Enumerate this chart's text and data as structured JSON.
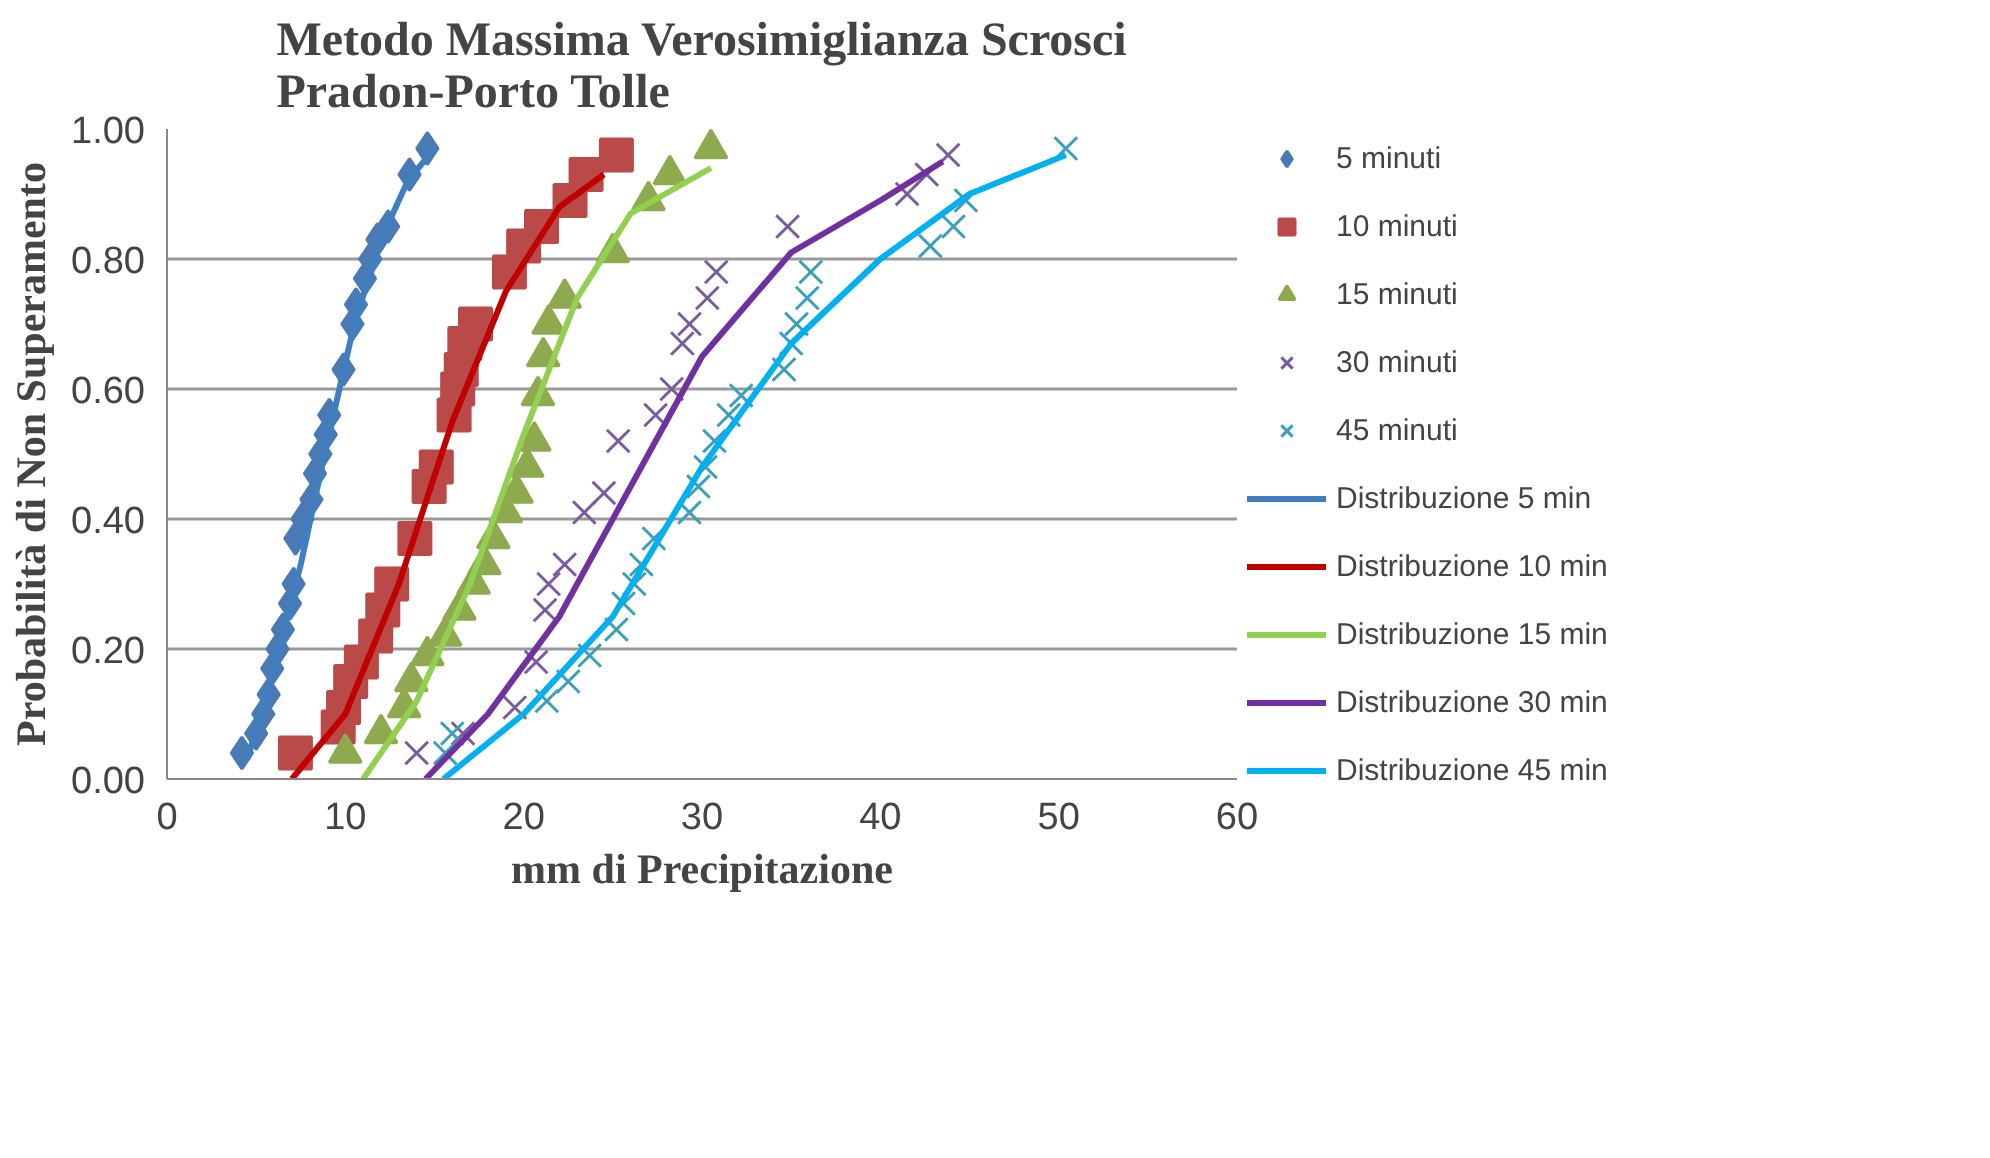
{
  "chart_data": {
    "type": "scatter",
    "title": "Metodo Massima Verosimiglianza Scrosci\nPradon-Porto Tolle",
    "xlabel": "mm di Precipitazione",
    "ylabel": "Probabilità di Non Superamento",
    "xlim": [
      0,
      60
    ],
    "xticks": [
      0,
      10,
      20,
      30,
      40,
      50,
      60
    ],
    "ylim": [
      0,
      1
    ],
    "yticks": [
      {
        "value": 0,
        "label": "0.00"
      },
      {
        "value": 0.2,
        "label": "0.20"
      },
      {
        "value": 0.4,
        "label": "0.40"
      },
      {
        "value": 0.6,
        "label": "0.60"
      },
      {
        "value": 0.8,
        "label": "0.80"
      },
      {
        "value": 1,
        "label": "1.00"
      }
    ],
    "grid": "y",
    "legend": "right",
    "series": [
      {
        "name": "5 minuti",
        "marker": "diamond",
        "color": "#4a7ab5",
        "x": [
          4.2,
          5.0,
          5.4,
          5.7,
          5.9,
          6.2,
          6.5,
          6.9,
          7.1,
          7.2,
          7.6,
          8.1,
          8.3,
          8.6,
          8.9,
          9.1,
          9.9,
          10.4,
          10.6,
          11.1,
          11.4,
          11.8,
          12.4,
          13.6,
          14.6
        ],
        "values": [
          0.04,
          0.07,
          0.1,
          0.13,
          0.17,
          0.2,
          0.23,
          0.27,
          0.3,
          0.37,
          0.4,
          0.43,
          0.47,
          0.5,
          0.53,
          0.56,
          0.63,
          0.7,
          0.73,
          0.77,
          0.8,
          0.83,
          0.85,
          0.93,
          0.97
        ]
      },
      {
        "name": "10 minuti",
        "marker": "square",
        "color": "#b94a47",
        "x": [
          7.2,
          9.6,
          9.9,
          10.3,
          10.9,
          11.7,
          12.1,
          12.6,
          13.9,
          14.7,
          15.1,
          16.1,
          16.3,
          16.5,
          16.7,
          17.3,
          19.2,
          20.0,
          21.0,
          22.6,
          23.5,
          25.2
        ],
        "values": [
          0.04,
          0.08,
          0.11,
          0.15,
          0.18,
          0.22,
          0.26,
          0.3,
          0.37,
          0.45,
          0.48,
          0.56,
          0.6,
          0.63,
          0.67,
          0.7,
          0.78,
          0.82,
          0.85,
          0.89,
          0.93,
          0.96
        ]
      },
      {
        "name": "15 minuti",
        "marker": "triangle",
        "color": "#8fa94f",
        "x": [
          10.0,
          12.0,
          13.3,
          13.7,
          14.6,
          15.6,
          16.4,
          17.2,
          17.8,
          18.3,
          19.0,
          19.6,
          20.2,
          20.6,
          20.8,
          21.1,
          21.4,
          22.3,
          25.0,
          27.0,
          28.2,
          30.5
        ],
        "values": [
          0.04,
          0.07,
          0.11,
          0.15,
          0.19,
          0.22,
          0.26,
          0.3,
          0.33,
          0.37,
          0.41,
          0.44,
          0.48,
          0.52,
          0.59,
          0.65,
          0.7,
          0.74,
          0.81,
          0.89,
          0.93,
          0.97
        ]
      },
      {
        "name": "30 minuti",
        "marker": "cross",
        "color": "#7a5c9e",
        "x": [
          14.0,
          16.6,
          19.5,
          20.7,
          21.2,
          21.4,
          22.3,
          23.4,
          24.5,
          25.3,
          27.4,
          28.3,
          28.9,
          29.3,
          30.3,
          30.8,
          34.8,
          41.5,
          42.6,
          43.8
        ],
        "values": [
          0.04,
          0.07,
          0.11,
          0.18,
          0.26,
          0.3,
          0.33,
          0.41,
          0.44,
          0.52,
          0.56,
          0.6,
          0.67,
          0.7,
          0.74,
          0.78,
          0.85,
          0.9,
          0.93,
          0.96
        ]
      },
      {
        "name": "45 minuti",
        "marker": "cross",
        "color": "#3a9fbb",
        "x": [
          15.6,
          16.0,
          21.3,
          22.5,
          23.7,
          25.2,
          25.6,
          26.2,
          26.6,
          27.3,
          29.3,
          29.8,
          30.2,
          30.7,
          31.5,
          32.2,
          34.6,
          35.0,
          35.3,
          35.9,
          36.1,
          42.8,
          44.1,
          44.8,
          50.4
        ],
        "values": [
          0.04,
          0.07,
          0.12,
          0.15,
          0.19,
          0.23,
          0.27,
          0.3,
          0.33,
          0.37,
          0.41,
          0.45,
          0.48,
          0.52,
          0.56,
          0.59,
          0.63,
          0.67,
          0.7,
          0.74,
          0.78,
          0.82,
          0.85,
          0.89,
          0.97
        ]
      },
      {
        "name": "Distribuzione 5 min",
        "type": "line",
        "color": "#3f7fc0",
        "x": [
          4.5,
          6,
          7.5,
          9,
          10.5,
          12,
          13.5,
          15
        ],
        "values": [
          0.03,
          0.17,
          0.33,
          0.52,
          0.7,
          0.83,
          0.92,
          0.97
        ]
      },
      {
        "name": "Distribuzione 10 min",
        "type": "line",
        "color": "#c00000",
        "x": [
          7,
          10,
          13,
          16,
          19,
          22,
          24.5
        ],
        "values": [
          0.0,
          0.1,
          0.3,
          0.55,
          0.75,
          0.88,
          0.93
        ]
      },
      {
        "name": "Distribuzione 15 min",
        "type": "line",
        "color": "#92d050",
        "x": [
          11,
          14,
          17,
          20,
          23,
          26,
          30.5
        ],
        "values": [
          0.0,
          0.12,
          0.3,
          0.53,
          0.74,
          0.87,
          0.94
        ]
      },
      {
        "name": "Distribuzione 30 min",
        "type": "line",
        "color": "#7030a0",
        "x": [
          14.5,
          18,
          22,
          26,
          30,
          35,
          40,
          43.5
        ],
        "values": [
          0.0,
          0.1,
          0.25,
          0.45,
          0.65,
          0.81,
          0.89,
          0.95
        ]
      },
      {
        "name": "Distribuzione 45 min",
        "type": "line",
        "color": "#00b0f0",
        "x": [
          15.5,
          20,
          25,
          30,
          35,
          40,
          45,
          50.4
        ],
        "values": [
          0.0,
          0.1,
          0.25,
          0.48,
          0.67,
          0.8,
          0.9,
          0.96
        ]
      }
    ]
  }
}
